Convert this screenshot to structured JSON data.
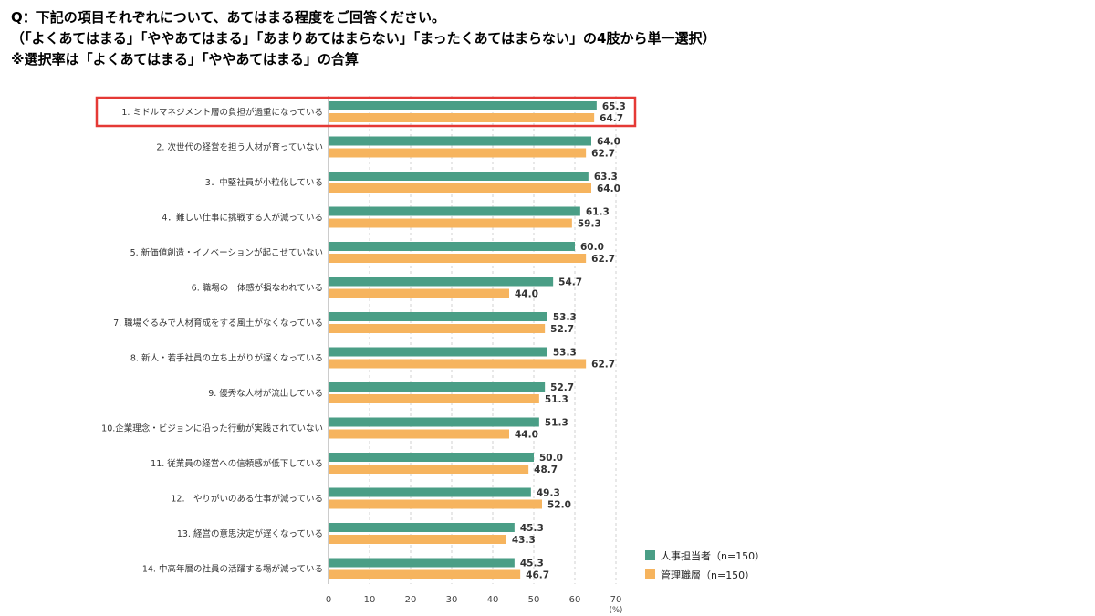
{
  "question": {
    "line1": "Q：下記の項目それぞれについて、あてはまる程度をご回答ください。",
    "line2": "（「よくあてはまる」「ややあてはまる」「あまりあてはまらない」「まったくあてはまらない」の4肢から単一選択）",
    "line3": "※選択率は「よくあてはまる」「ややあてはまる」の合算"
  },
  "colors": {
    "series1": "#4a9e86",
    "series2": "#f6b45e",
    "highlight": "#e53935",
    "grid": "#d0d0d0",
    "axis": "#999999"
  },
  "chart_data": {
    "type": "bar",
    "orientation": "horizontal",
    "unit": "(%)",
    "xlim": [
      0,
      70
    ],
    "xticks": [
      "0",
      "10",
      "20",
      "30",
      "40",
      "50",
      "60",
      "70"
    ],
    "grid": "vertical dashed",
    "legend_position": "bottom-right",
    "highlighted_category_index": 0,
    "categories": [
      "1. ミドルマネジメント層の負担が過重になっている",
      "2. 次世代の経営を担う人材が育っていない",
      "3．中堅社員が小粒化している",
      "4．難しい仕事に挑戦する人が減っている",
      "5. 新価値創造・イノベーションが起こせていない",
      "6. 職場の一体感が損なわれている",
      "7. 職場ぐるみで人材育成をする風土がなくなっている",
      "8. 新人・若手社員の立ち上がりが遅くなっている",
      "9. 優秀な人材が流出している",
      "10.企業理念・ビジョンに沿った行動が実践されていない",
      "11. 従業員の経営への信頼感が低下している",
      "12.　やりがいのある仕事が減っている",
      "13. 経営の意思決定が遅くなっている",
      "14. 中高年層の社員の活躍する場が減っている"
    ],
    "series": [
      {
        "name": "人事担当者（n=150）",
        "values": [
          65.3,
          64.0,
          63.3,
          61.3,
          60.0,
          54.7,
          53.3,
          53.3,
          52.7,
          51.3,
          50.0,
          49.3,
          45.3,
          45.3
        ],
        "labels": [
          "65.3",
          "64.0",
          "63.3",
          "61.3",
          "60.0",
          "54.7",
          "53.3",
          "53.3",
          "52.7",
          "51.3",
          "50.0",
          "49.3",
          "45.3",
          "45.3"
        ]
      },
      {
        "name": "管理職層（n=150）",
        "values": [
          64.7,
          62.7,
          64.0,
          59.3,
          62.7,
          44.0,
          52.7,
          62.7,
          51.3,
          44.0,
          48.7,
          52.0,
          43.3,
          46.7
        ],
        "labels": [
          "64.7",
          "62.7",
          "64.0",
          "59.3",
          "62.7",
          "44.0",
          "52.7",
          "62.7",
          "51.3",
          "44.0",
          "48.7",
          "52.0",
          "43.3",
          "46.7"
        ]
      }
    ]
  }
}
